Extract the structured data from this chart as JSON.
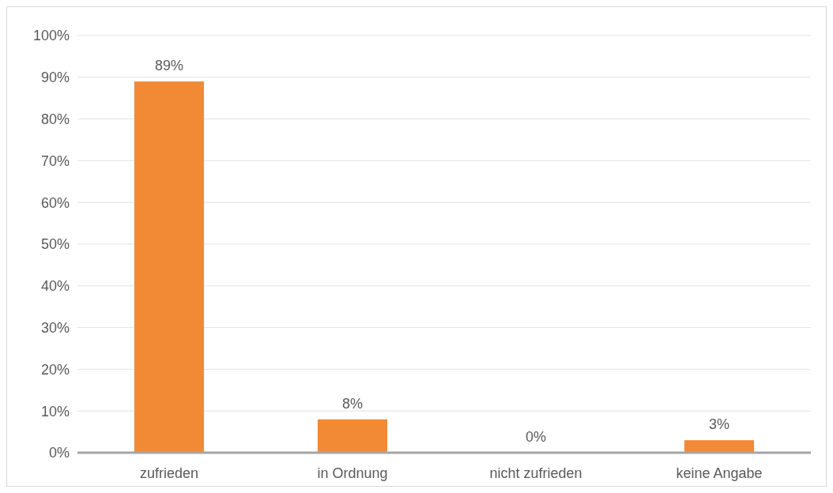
{
  "chart_data": {
    "type": "bar",
    "categories": [
      "zufrieden",
      "in Ordnung",
      "nicht zufrieden",
      "keine Angabe"
    ],
    "values": [
      89,
      8,
      0,
      3
    ],
    "color": "#f28a35",
    "value_labels": [
      "89%",
      "8%",
      "0%",
      "3%"
    ],
    "ylim": [
      0,
      100
    ],
    "yticks": [
      {
        "value": 0,
        "label": "0%"
      },
      {
        "value": 10,
        "label": "10%"
      },
      {
        "value": 20,
        "label": "20%"
      },
      {
        "value": 30,
        "label": "30%"
      },
      {
        "value": 40,
        "label": "40%"
      },
      {
        "value": 50,
        "label": "50%"
      },
      {
        "value": 60,
        "label": "60%"
      },
      {
        "value": 70,
        "label": "70%"
      },
      {
        "value": 80,
        "label": "80%"
      },
      {
        "value": 90,
        "label": "90%"
      },
      {
        "value": 100,
        "label": "100%"
      }
    ],
    "grid": "y"
  }
}
